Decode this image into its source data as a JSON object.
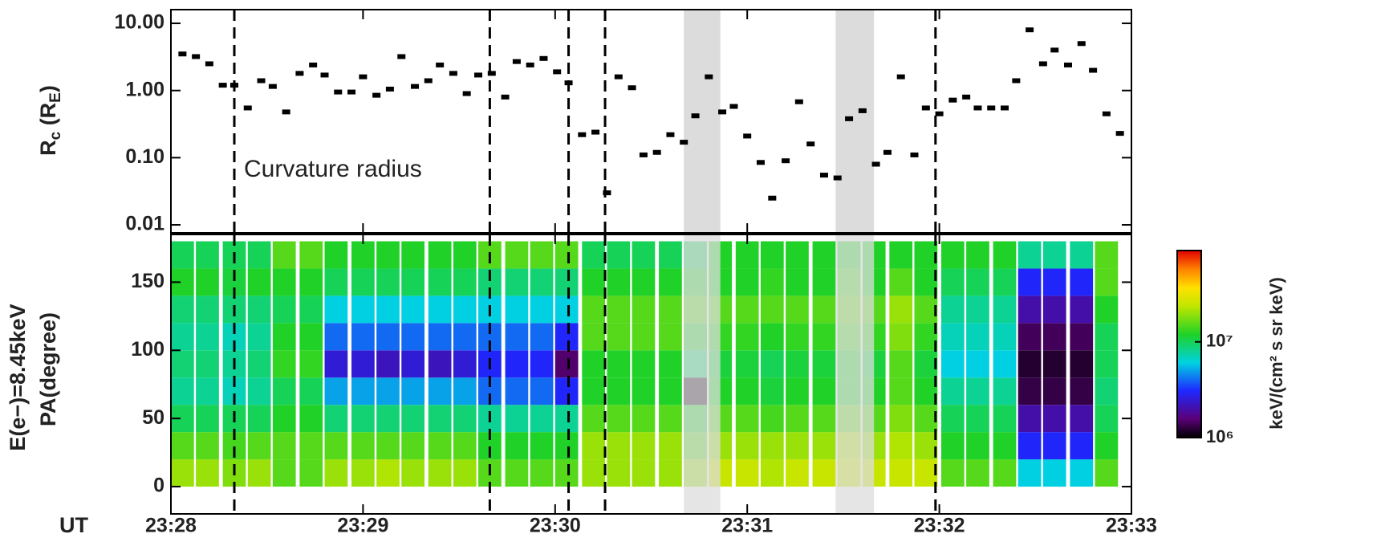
{
  "chart_data": [
    {
      "type": "scatter",
      "y_label_parts": [
        "R",
        "c",
        " (R",
        "E",
        ")"
      ],
      "annotation": "Curvature radius",
      "color": "#000000",
      "log_y": true,
      "xlim": [
        1408,
        1413
      ],
      "xticks": [
        1408,
        1409,
        1410,
        1411,
        1412,
        1413
      ],
      "ylim": [
        0.0076,
        16
      ],
      "yticks": [
        0.01,
        {
          "value": 0.1,
          "label": "0.10"
        },
        {
          "value": 1,
          "label": "1.00"
        },
        {
          "value": 10,
          "label": "10.00"
        }
      ],
      "event_lines": [
        1408.33,
        1409.66,
        1410.07,
        1410.26,
        1411.98
      ],
      "shaded_intervals": [
        [
          1410.67,
          1410.86
        ],
        [
          1411.46,
          1411.66
        ]
      ],
      "x": [
        1408.06,
        1408.13,
        1408.2,
        1408.27,
        1408.33,
        1408.4,
        1408.47,
        1408.53,
        1408.6,
        1408.67,
        1408.74,
        1408.8,
        1408.87,
        1408.94,
        1409.0,
        1409.07,
        1409.14,
        1409.2,
        1409.27,
        1409.34,
        1409.4,
        1409.47,
        1409.54,
        1409.6,
        1409.67,
        1409.74,
        1409.8,
        1409.87,
        1409.94,
        1410.01,
        1410.07,
        1410.14,
        1410.21,
        1410.27,
        1410.33,
        1410.4,
        1410.46,
        1410.53,
        1410.6,
        1410.67,
        1410.73,
        1410.8,
        1410.87,
        1410.93,
        1411.0,
        1411.07,
        1411.13,
        1411.2,
        1411.27,
        1411.33,
        1411.4,
        1411.47,
        1411.53,
        1411.6,
        1411.67,
        1411.73,
        1411.8,
        1411.87,
        1411.93,
        1412.0,
        1412.07,
        1412.14,
        1412.2,
        1412.27,
        1412.34,
        1412.4,
        1412.47,
        1412.54,
        1412.6,
        1412.67,
        1412.74,
        1412.8,
        1412.87,
        1412.94
      ],
      "values": [
        3.5,
        3.2,
        2.5,
        1.2,
        1.2,
        0.55,
        1.4,
        1.15,
        0.48,
        1.8,
        2.4,
        1.7,
        0.95,
        0.95,
        1.6,
        0.85,
        1.05,
        3.2,
        1.15,
        1.4,
        2.4,
        1.8,
        0.9,
        1.7,
        1.8,
        0.8,
        2.7,
        2.4,
        3.0,
        1.9,
        1.3,
        0.22,
        0.24,
        0.03,
        1.6,
        1.1,
        0.11,
        0.12,
        0.22,
        0.17,
        0.42,
        1.6,
        0.48,
        0.58,
        0.21,
        0.085,
        0.025,
        0.09,
        0.68,
        0.16,
        0.055,
        0.05,
        0.38,
        0.5,
        0.08,
        0.12,
        1.6,
        0.11,
        0.55,
        0.45,
        0.72,
        0.8,
        0.55,
        0.55,
        0.55,
        1.4,
        8,
        2.5,
        4,
        2.4,
        5,
        2,
        0.45,
        0.23
      ]
    },
    {
      "type": "heatmap",
      "y_labels": [
        "E(e−)=8.45keV",
        "PA(degree)"
      ],
      "x_label": "UT",
      "xlim": [
        1408,
        1413
      ],
      "xticks": [
        {
          "value": 1408,
          "label": "23:28"
        },
        {
          "value": 1409,
          "label": "23:29"
        },
        {
          "value": 1410,
          "label": "23:30"
        },
        {
          "value": 1411,
          "label": "23:31"
        },
        {
          "value": 1412,
          "label": "23:32"
        },
        {
          "value": 1413,
          "label": "23:33"
        }
      ],
      "ylim": [
        -20,
        185
      ],
      "yticks": [
        0,
        50,
        100,
        150
      ],
      "y_bins": [
        0,
        20,
        40,
        60,
        80,
        100,
        120,
        140,
        160,
        180
      ],
      "x": [
        1408.06,
        1408.19,
        1408.33,
        1408.46,
        1408.59,
        1408.73,
        1408.86,
        1409.0,
        1409.13,
        1409.26,
        1409.4,
        1409.53,
        1409.66,
        1409.8,
        1409.93,
        1410.06,
        1410.2,
        1410.33,
        1410.46,
        1410.6,
        1410.73,
        1410.86,
        1411.0,
        1411.13,
        1411.26,
        1411.4,
        1411.53,
        1411.66,
        1411.8,
        1411.93,
        1412.07,
        1412.2,
        1412.34,
        1412.47,
        1412.6,
        1412.74,
        1412.87
      ],
      "z": [
        [
          20000000.0,
          15000000.0,
          10000000.0,
          8000000.0,
          9000000.0,
          8000000.0,
          9000000.0,
          12000000.0,
          10000000.0
        ],
        [
          20000000.0,
          15000000.0,
          10000000.0,
          8000000.0,
          9000000.0,
          8000000.0,
          9000000.0,
          12000000.0,
          10000000.0
        ],
        [
          18000000.0,
          14000000.0,
          10000000.0,
          7000000.0,
          8000000.0,
          7000000.0,
          9000000.0,
          11000000.0,
          10000000.0
        ],
        [
          20000000.0,
          15000000.0,
          10000000.0,
          8000000.0,
          9000000.0,
          8000000.0,
          9000000.0,
          12000000.0,
          10000000.0
        ],
        [
          15000000.0,
          15000000.0,
          12000000.0,
          10000000.0,
          13000000.0,
          12000000.0,
          10000000.0,
          12000000.0,
          15000000.0
        ],
        [
          15000000.0,
          15000000.0,
          12000000.0,
          10000000.0,
          13000000.0,
          12000000.0,
          10000000.0,
          12000000.0,
          15000000.0
        ],
        [
          20000000.0,
          15000000.0,
          9000000.0,
          5000000.0,
          2500000.0,
          4000000.0,
          6000000.0,
          10000000.0,
          12000000.0
        ],
        [
          20000000.0,
          15000000.0,
          9000000.0,
          5000000.0,
          2500000.0,
          4000000.0,
          6000000.0,
          10000000.0,
          12000000.0
        ],
        [
          22000000.0,
          15000000.0,
          9000000.0,
          5000000.0,
          2200000.0,
          4000000.0,
          6000000.0,
          10000000.0,
          12000000.0
        ],
        [
          20000000.0,
          15000000.0,
          9000000.0,
          5000000.0,
          2500000.0,
          4000000.0,
          6000000.0,
          10000000.0,
          12000000.0
        ],
        [
          20000000.0,
          15000000.0,
          9000000.0,
          5000000.0,
          2200000.0,
          4000000.0,
          6000000.0,
          10000000.0,
          12000000.0
        ],
        [
          20000000.0,
          15000000.0,
          9000000.0,
          5000000.0,
          2500000.0,
          4000000.0,
          6000000.0,
          10000000.0,
          12000000.0
        ],
        [
          15000000.0,
          12000000.0,
          8000000.0,
          4000000.0,
          3000000.0,
          4000000.0,
          6000000.0,
          9000000.0,
          15000000.0
        ],
        [
          15000000.0,
          12000000.0,
          8000000.0,
          4000000.0,
          3000000.0,
          4000000.0,
          6000000.0,
          9000000.0,
          15000000.0
        ],
        [
          15000000.0,
          12000000.0,
          8000000.0,
          4000000.0,
          3000000.0,
          4000000.0,
          6000000.0,
          9000000.0,
          15000000.0
        ],
        [
          15000000.0,
          12000000.0,
          8000000.0,
          3000000.0,
          1500000.0,
          3000000.0,
          6000000.0,
          9000000.0,
          15000000.0
        ],
        [
          20000000.0,
          20000000.0,
          15000000.0,
          12000000.0,
          12000000.0,
          15000000.0,
          15000000.0,
          12000000.0,
          10000000.0
        ],
        [
          20000000.0,
          20000000.0,
          15000000.0,
          12000000.0,
          12000000.0,
          15000000.0,
          15000000.0,
          12000000.0,
          10000000.0
        ],
        [
          20000000.0,
          20000000.0,
          15000000.0,
          12000000.0,
          12000000.0,
          15000000.0,
          15000000.0,
          12000000.0,
          10000000.0
        ],
        [
          20000000.0,
          20000000.0,
          15000000.0,
          12000000.0,
          12000000.0,
          15000000.0,
          15000000.0,
          12000000.0,
          10000000.0
        ],
        [
          20000000.0,
          15000000.0,
          12000000.0,
          1100000.0,
          9000000.0,
          12000000.0,
          15000000.0,
          12000000.0,
          10000000.0
        ],
        [
          25000000.0,
          20000000.0,
          15000000.0,
          12000000.0,
          11000000.0,
          13000000.0,
          15000000.0,
          12000000.0,
          12000000.0
        ],
        [
          25000000.0,
          20000000.0,
          15000000.0,
          12000000.0,
          11000000.0,
          13000000.0,
          15000000.0,
          12000000.0,
          12000000.0
        ],
        [
          22000000.0,
          20000000.0,
          14000000.0,
          11000000.0,
          10000000.0,
          12000000.0,
          15000000.0,
          13000000.0,
          12000000.0
        ],
        [
          25000000.0,
          20000000.0,
          15000000.0,
          12000000.0,
          11000000.0,
          13000000.0,
          15000000.0,
          12000000.0,
          12000000.0
        ],
        [
          25000000.0,
          20000000.0,
          15000000.0,
          12000000.0,
          11000000.0,
          13000000.0,
          15000000.0,
          12000000.0,
          12000000.0
        ],
        [
          25000000.0,
          22000000.0,
          16000000.0,
          12000000.0,
          12000000.0,
          14000000.0,
          16000000.0,
          14000000.0,
          12000000.0
        ],
        [
          25000000.0,
          20000000.0,
          15000000.0,
          12000000.0,
          11000000.0,
          13000000.0,
          15000000.0,
          12000000.0,
          12000000.0
        ],
        [
          25000000.0,
          22000000.0,
          18000000.0,
          15000000.0,
          15000000.0,
          18000000.0,
          20000000.0,
          15000000.0,
          12000000.0
        ],
        [
          25000000.0,
          20000000.0,
          15000000.0,
          12000000.0,
          11000000.0,
          13000000.0,
          15000000.0,
          12000000.0,
          12000000.0
        ],
        [
          15000000.0,
          12000000.0,
          10000000.0,
          8000000.0,
          6000000.0,
          7000000.0,
          8000000.0,
          10000000.0,
          12000000.0
        ],
        [
          15000000.0,
          12000000.0,
          10000000.0,
          8000000.0,
          6000000.0,
          7000000.0,
          8000000.0,
          10000000.0,
          12000000.0
        ],
        [
          15000000.0,
          12000000.0,
          10000000.0,
          8000000.0,
          6000000.0,
          7000000.0,
          8000000.0,
          10000000.0,
          12000000.0
        ],
        [
          6000000.0,
          3000000.0,
          2000000.0,
          1300000.0,
          1200000.0,
          1400000.0,
          2000000.0,
          3000000.0,
          8000000.0
        ],
        [
          6000000.0,
          3000000.0,
          2000000.0,
          1300000.0,
          1200000.0,
          1400000.0,
          2000000.0,
          3000000.0,
          8000000.0
        ],
        [
          6000000.0,
          3000000.0,
          2000000.0,
          1300000.0,
          1200000.0,
          1400000.0,
          2000000.0,
          3000000.0,
          8000000.0
        ],
        [
          15000000.0,
          12000000.0,
          10000000.0,
          9000000.0,
          10000000.0,
          10000000.0,
          12000000.0,
          15000000.0,
          15000000.0
        ]
      ],
      "colorbar": {
        "label": "keV/(cm² s sr keV)",
        "log": true,
        "clim": [
          1000000.0,
          90000000.0
        ],
        "ticks": [
          {
            "value": 1000000.0,
            "label": "10⁶"
          },
          {
            "value": 10000000.0,
            "label": "10⁷"
          }
        ]
      }
    }
  ]
}
